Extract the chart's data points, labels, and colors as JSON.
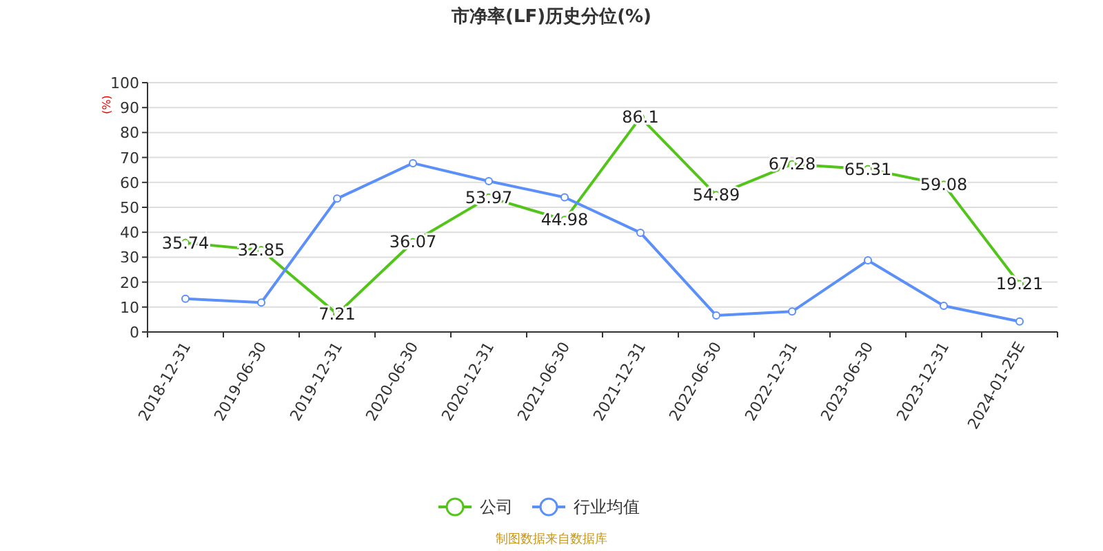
{
  "chart_data": {
    "type": "line",
    "title": "市净率(LF)历史分位(%)",
    "ylabel": "(%)",
    "categories": [
      "2018-12-31",
      "2019-06-30",
      "2019-12-31",
      "2020-06-30",
      "2020-12-31",
      "2021-06-30",
      "2021-12-31",
      "2022-06-30",
      "2022-12-31",
      "2023-06-30",
      "2023-12-31",
      "2024-01-25E"
    ],
    "series": [
      {
        "name": "公司",
        "color": "#52c41a",
        "values": [
          35.74,
          32.85,
          7.21,
          36.07,
          53.97,
          44.98,
          86.1,
          54.89,
          67.28,
          65.31,
          59.08,
          19.21
        ],
        "value_labels": [
          "35.74",
          "32.85",
          "7.21",
          "36.07",
          "53.97",
          "44.98",
          "86.1",
          "54.89",
          "67.28",
          "65.31",
          "59.08",
          "19.21"
        ]
      },
      {
        "name": "行业均值",
        "color": "#5b8ff9",
        "values": [
          13.3,
          11.8,
          53.5,
          67.7,
          60.5,
          54.0,
          39.8,
          6.6,
          8.2,
          28.7,
          10.5,
          4.2
        ]
      }
    ],
    "ylim": [
      0,
      100
    ],
    "yticks": [
      0,
      10,
      20,
      30,
      40,
      50,
      60,
      70,
      80,
      90,
      100
    ],
    "grid": "y",
    "legend": "bottom",
    "marker": "circle",
    "line_style": "solid",
    "annotations": [
      "制图数据来自数据库"
    ]
  }
}
